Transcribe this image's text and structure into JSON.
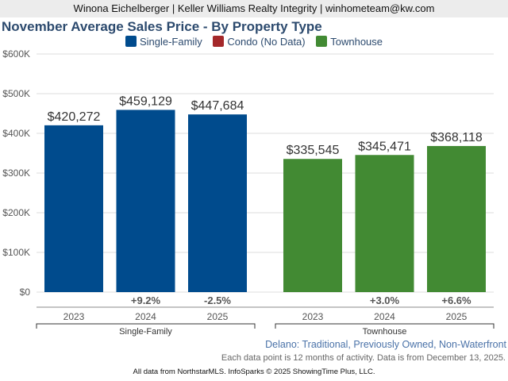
{
  "header": "Winona Eichelberger | Keller Williams Realty Integrity | winhometeam@kw.com",
  "subtitle": "Delano: Traditional, Previously Owned, Non-Waterfront",
  "note": "Each data point is 12 months of activity. Data is from December 13, 2025.",
  "footer": "All data from NorthstarMLS. InfoSparks © 2025 ShowingTime Plus, LLC.",
  "chart_data": {
    "type": "bar",
    "title": "November Average Sales Price - By Property Type",
    "legend": [
      {
        "name": "Single-Family",
        "color": "#004b8d"
      },
      {
        "name": "Condo (No Data)",
        "color": "#a4282a"
      },
      {
        "name": "Townhouse",
        "color": "#428a33"
      }
    ],
    "legend_position": "top",
    "ylim": [
      0,
      600000
    ],
    "yticks": [
      "$0",
      "$100K",
      "$200K",
      "$300K",
      "$400K",
      "$500K",
      "$600K"
    ],
    "grid": true,
    "groups": [
      {
        "name": "Single-Family",
        "color": "#004b8d",
        "categories": [
          "2023",
          "2024",
          "2025"
        ],
        "values": [
          420272,
          459129,
          447684
        ],
        "labels": [
          "$420,272",
          "$459,129",
          "$447,684"
        ],
        "changes": [
          "",
          "+9.2%",
          "-2.5%"
        ]
      },
      {
        "name": "Townhouse",
        "color": "#428a33",
        "categories": [
          "2023",
          "2024",
          "2025"
        ],
        "values": [
          335545,
          345471,
          368118
        ],
        "labels": [
          "$335,545",
          "$345,471",
          "$368,118"
        ],
        "changes": [
          "",
          "+3.0%",
          "+6.6%"
        ]
      }
    ]
  }
}
